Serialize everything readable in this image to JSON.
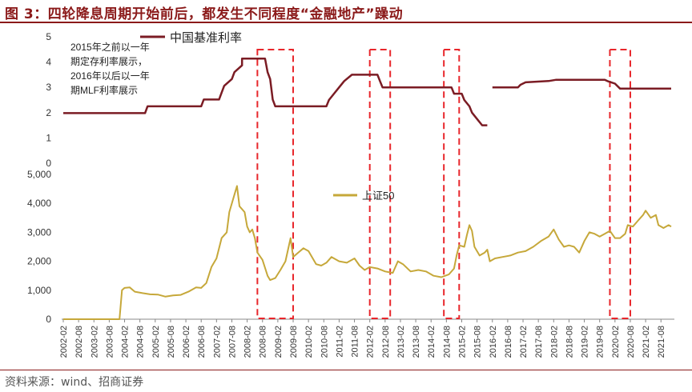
{
  "figure": {
    "title": "图 3：四轮降息周期开始前后，都发生不同程度“金融地产”躁动",
    "source": "资料来源：wind、招商证券"
  },
  "colors": {
    "title": "#8b1a1a",
    "rate_line": "#7b1c24",
    "index_line": "#c6a83a",
    "highlight_box": "#e8262b",
    "axis": "#888888"
  },
  "chart_data": [
    {
      "type": "line",
      "title": "",
      "ylim": [
        0,
        5
      ],
      "yticks": [
        "0",
        "1",
        "2",
        "3",
        "4",
        "5"
      ],
      "legend": {
        "position": "top-left",
        "label": "中国基准利率"
      },
      "annotation": [
        "2015年之前以一年",
        "期定存利率展示，",
        "2016年以后以一年",
        "期MLF利率展示"
      ],
      "series": [
        {
          "name": "中国基准利率",
          "segments": [
            [
              [
                "2002-02",
                1.98
              ],
              [
                "2004-10",
                1.98
              ],
              [
                "2004-11",
                2.25
              ],
              [
                "2006-08",
                2.25
              ],
              [
                "2006-09",
                2.52
              ],
              [
                "2007-03",
                2.52
              ],
              [
                "2007-04",
                2.79
              ],
              [
                "2007-05",
                3.06
              ],
              [
                "2007-08",
                3.33
              ],
              [
                "2007-09",
                3.6
              ],
              [
                "2007-12",
                3.87
              ],
              [
                "2007-12",
                4.14
              ],
              [
                "2008-09",
                4.14
              ],
              [
                "2008-10",
                3.6
              ],
              [
                "2008-11",
                3.33
              ],
              [
                "2008-12",
                2.52
              ],
              [
                "2009-01",
                2.25
              ],
              [
                "2010-09",
                2.25
              ],
              [
                "2010-10",
                2.5
              ],
              [
                "2010-12",
                2.75
              ],
              [
                "2011-02",
                3.0
              ],
              [
                "2011-04",
                3.25
              ],
              [
                "2011-07",
                3.5
              ],
              [
                "2012-05",
                3.5
              ],
              [
                "2012-06",
                3.25
              ],
              [
                "2012-07",
                3.0
              ],
              [
                "2014-10",
                3.0
              ],
              [
                "2014-11",
                2.75
              ],
              [
                "2015-02",
                2.75
              ],
              [
                "2015-03",
                2.5
              ],
              [
                "2015-05",
                2.25
              ],
              [
                "2015-06",
                2.0
              ],
              [
                "2015-08",
                1.75
              ],
              [
                "2015-10",
                1.5
              ],
              [
                "2015-12",
                1.5
              ]
            ],
            [
              [
                "2016-02",
                3.0
              ],
              [
                "2016-12",
                3.0
              ],
              [
                "2017-01",
                3.1
              ],
              [
                "2017-03",
                3.2
              ],
              [
                "2017-12",
                3.25
              ],
              [
                "2018-03",
                3.3
              ],
              [
                "2019-10",
                3.3
              ],
              [
                "2019-11",
                3.25
              ],
              [
                "2020-02",
                3.15
              ],
              [
                "2020-04",
                2.95
              ],
              [
                "2021-12",
                2.95
              ]
            ]
          ]
        }
      ]
    },
    {
      "type": "line",
      "title": "",
      "ylim": [
        0,
        5000
      ],
      "yticks": [
        "0",
        "1,000",
        "2,000",
        "3,000",
        "4,000",
        "5,000"
      ],
      "legend": {
        "position": "top-center",
        "label": "上证50"
      },
      "xticks": [
        "2002-02",
        "2002-08",
        "2003-02",
        "2003-08",
        "2004-02",
        "2004-08",
        "2005-02",
        "2005-08",
        "2006-02",
        "2006-08",
        "2007-02",
        "2007-08",
        "2008-02",
        "2008-08",
        "2009-02",
        "2009-08",
        "2010-02",
        "2010-08",
        "2011-02",
        "2011-08",
        "2012-02",
        "2012-08",
        "2013-02",
        "2013-08",
        "2014-02",
        "2014-08",
        "2015-02",
        "2015-08",
        "2016-02",
        "2016-08",
        "2017-02",
        "2017-08",
        "2018-02",
        "2018-08",
        "2019-02",
        "2019-08",
        "2020-02",
        "2020-08",
        "2021-02",
        "2021-08"
      ],
      "series": [
        {
          "name": "上证50",
          "points": [
            [
              "2002-02",
              0
            ],
            [
              "2003-12",
              0
            ],
            [
              "2004-01",
              1000
            ],
            [
              "2004-02",
              1080
            ],
            [
              "2004-04",
              1100
            ],
            [
              "2004-06",
              950
            ],
            [
              "2004-09",
              900
            ],
            [
              "2004-12",
              860
            ],
            [
              "2005-03",
              850
            ],
            [
              "2005-06",
              780
            ],
            [
              "2005-09",
              820
            ],
            [
              "2005-12",
              840
            ],
            [
              "2006-03",
              950
            ],
            [
              "2006-06",
              1100
            ],
            [
              "2006-08",
              1080
            ],
            [
              "2006-10",
              1250
            ],
            [
              "2006-12",
              1800
            ],
            [
              "2007-02",
              2100
            ],
            [
              "2007-04",
              2800
            ],
            [
              "2007-06",
              3000
            ],
            [
              "2007-07",
              3700
            ],
            [
              "2007-09",
              4300
            ],
            [
              "2007-10",
              4600
            ],
            [
              "2007-11",
              3900
            ],
            [
              "2008-01",
              3700
            ],
            [
              "2008-02",
              3200
            ],
            [
              "2008-03",
              3000
            ],
            [
              "2008-04",
              3100
            ],
            [
              "2008-05",
              2800
            ],
            [
              "2008-06",
              2300
            ],
            [
              "2008-08",
              2050
            ],
            [
              "2008-10",
              1500
            ],
            [
              "2008-11",
              1350
            ],
            [
              "2009-01",
              1420
            ],
            [
              "2009-03",
              1700
            ],
            [
              "2009-05",
              2000
            ],
            [
              "2009-07",
              2800
            ],
            [
              "2009-08",
              2150
            ],
            [
              "2009-10",
              2300
            ],
            [
              "2009-12",
              2450
            ],
            [
              "2010-02",
              2350
            ],
            [
              "2010-05",
              1900
            ],
            [
              "2010-07",
              1850
            ],
            [
              "2010-09",
              1950
            ],
            [
              "2010-11",
              2150
            ],
            [
              "2011-02",
              2000
            ],
            [
              "2011-05",
              1950
            ],
            [
              "2011-08",
              2100
            ],
            [
              "2011-10",
              1850
            ],
            [
              "2011-12",
              1700
            ],
            [
              "2012-02",
              1800
            ],
            [
              "2012-05",
              1750
            ],
            [
              "2012-08",
              1650
            ],
            [
              "2012-11",
              1600
            ],
            [
              "2013-01",
              2000
            ],
            [
              "2013-03",
              1900
            ],
            [
              "2013-06",
              1650
            ],
            [
              "2013-09",
              1700
            ],
            [
              "2013-12",
              1650
            ],
            [
              "2014-03",
              1500
            ],
            [
              "2014-06",
              1450
            ],
            [
              "2014-09",
              1550
            ],
            [
              "2014-11",
              1750
            ],
            [
              "2014-12",
              2200
            ],
            [
              "2015-01",
              2550
            ],
            [
              "2015-03",
              2500
            ],
            [
              "2015-04",
              2900
            ],
            [
              "2015-05",
              3250
            ],
            [
              "2015-06",
              3050
            ],
            [
              "2015-07",
              2500
            ],
            [
              "2015-09",
              2200
            ],
            [
              "2015-11",
              2300
            ],
            [
              "2015-12",
              2400
            ],
            [
              "2016-01",
              2000
            ],
            [
              "2016-03",
              2100
            ],
            [
              "2016-06",
              2150
            ],
            [
              "2016-09",
              2200
            ],
            [
              "2016-12",
              2300
            ],
            [
              "2017-03",
              2350
            ],
            [
              "2017-06",
              2500
            ],
            [
              "2017-09",
              2700
            ],
            [
              "2017-12",
              2850
            ],
            [
              "2018-02",
              3100
            ],
            [
              "2018-04",
              2750
            ],
            [
              "2018-06",
              2500
            ],
            [
              "2018-08",
              2550
            ],
            [
              "2018-10",
              2500
            ],
            [
              "2018-12",
              2300
            ],
            [
              "2019-02",
              2700
            ],
            [
              "2019-04",
              3000
            ],
            [
              "2019-06",
              2950
            ],
            [
              "2019-08",
              2850
            ],
            [
              "2019-10",
              2950
            ],
            [
              "2019-12",
              3050
            ],
            [
              "2020-02",
              2800
            ],
            [
              "2020-04",
              2800
            ],
            [
              "2020-06",
              2950
            ],
            [
              "2020-07",
              3250
            ],
            [
              "2020-09",
              3200
            ],
            [
              "2020-11",
              3400
            ],
            [
              "2021-01",
              3600
            ],
            [
              "2021-02",
              3750
            ],
            [
              "2021-04",
              3500
            ],
            [
              "2021-06",
              3600
            ],
            [
              "2021-07",
              3250
            ],
            [
              "2021-09",
              3150
            ],
            [
              "2021-11",
              3250
            ],
            [
              "2021-12",
              3200
            ]
          ]
        }
      ],
      "highlight_periods": [
        [
          "2008-06",
          "2009-08"
        ],
        [
          "2012-02",
          "2012-10"
        ],
        [
          "2014-07",
          "2015-01"
        ],
        [
          "2019-12",
          "2020-08"
        ]
      ]
    }
  ]
}
